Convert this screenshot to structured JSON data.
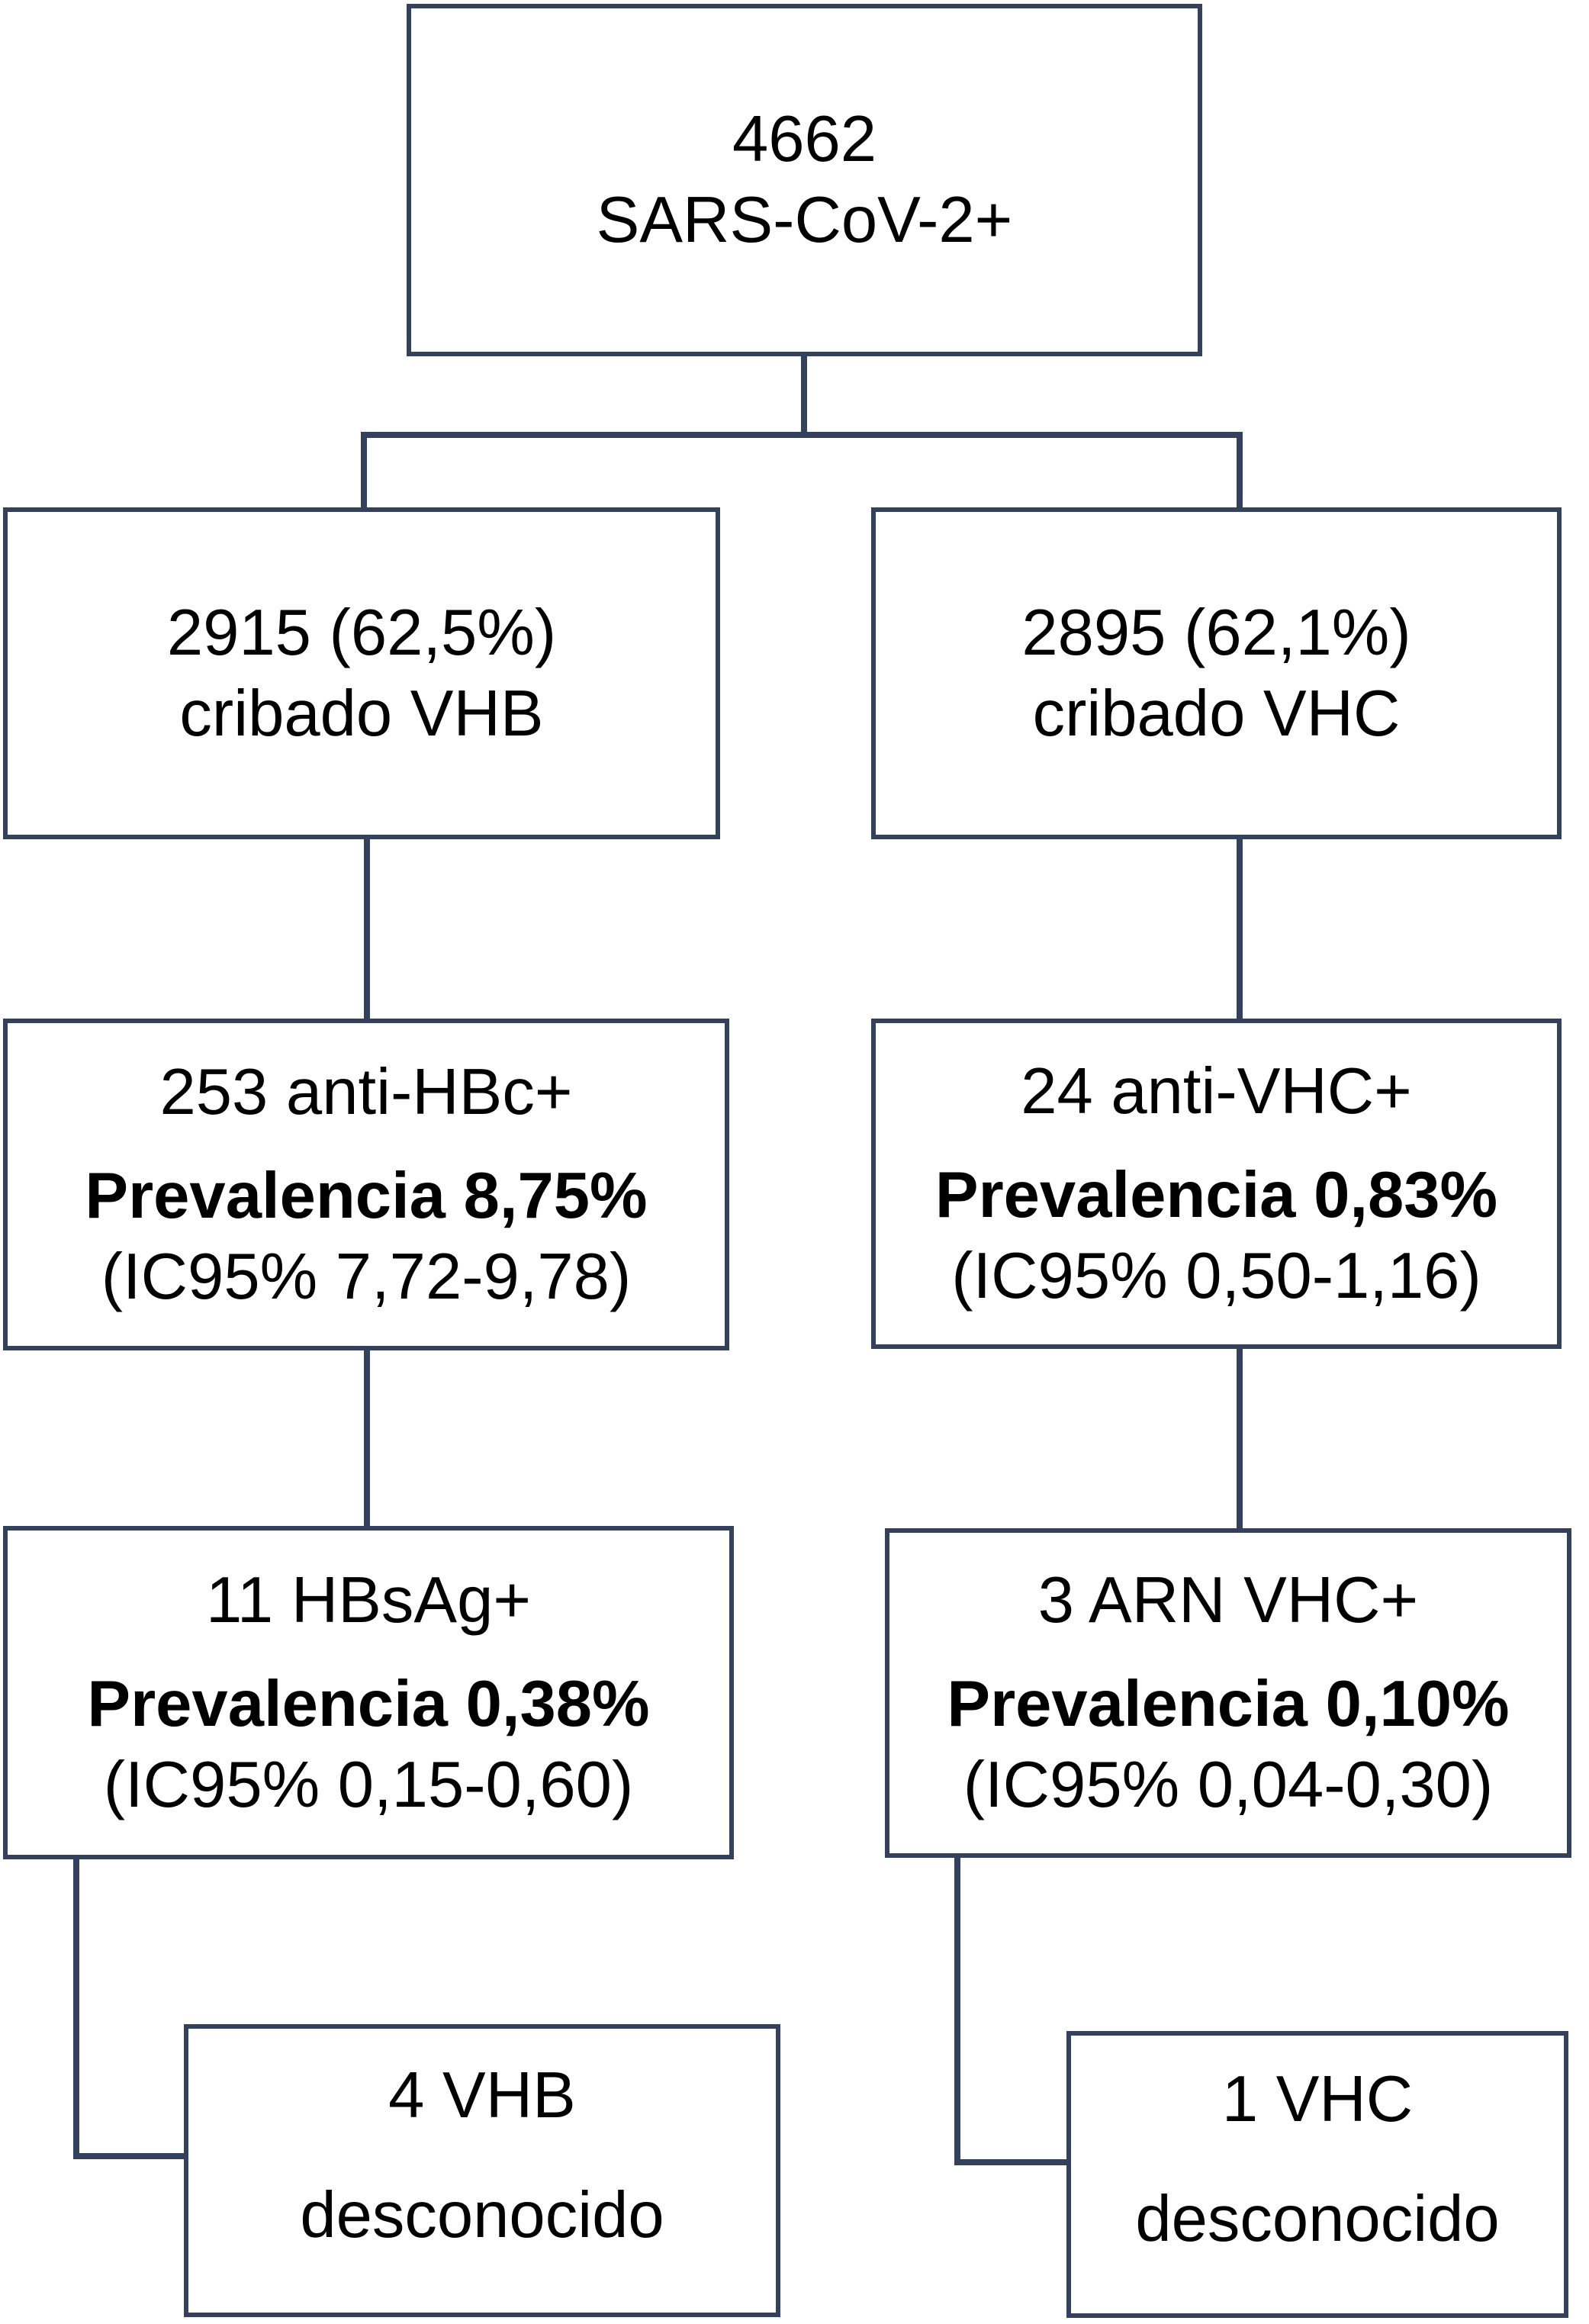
{
  "diagram": {
    "colors": {
      "line": "#33415c",
      "text": "#000000",
      "background": "#ffffff"
    },
    "root": {
      "line1": "4662",
      "line2": "SARS-CoV-2+"
    },
    "vhb": {
      "screened": {
        "line1": "2915 (62,5%)",
        "line2": "cribado VHB"
      },
      "anti_hbc": {
        "title": "253 anti-HBc+",
        "prevalence": "Prevalencia 8,75%",
        "ci": "(IC95% 7,72-9,78)"
      },
      "hbsag": {
        "title": "11 HBsAg+",
        "prevalence": "Prevalencia 0,38%",
        "ci": "(IC95% 0,15-0,60)"
      },
      "unknown": {
        "line1": "4 VHB",
        "line2": "desconocido"
      }
    },
    "vhc": {
      "screened": {
        "line1": "2895 (62,1%)",
        "line2": "cribado VHC"
      },
      "anti_vhc": {
        "title": "24 anti-VHC+",
        "prevalence": "Prevalencia 0,83%",
        "ci": "(IC95% 0,50-1,16)"
      },
      "arn": {
        "title": "3 ARN VHC+",
        "prevalence": "Prevalencia 0,10%",
        "ci": "(IC95% 0,04-0,30)"
      },
      "unknown": {
        "line1": "1 VHC",
        "line2": "desconocido"
      }
    }
  }
}
